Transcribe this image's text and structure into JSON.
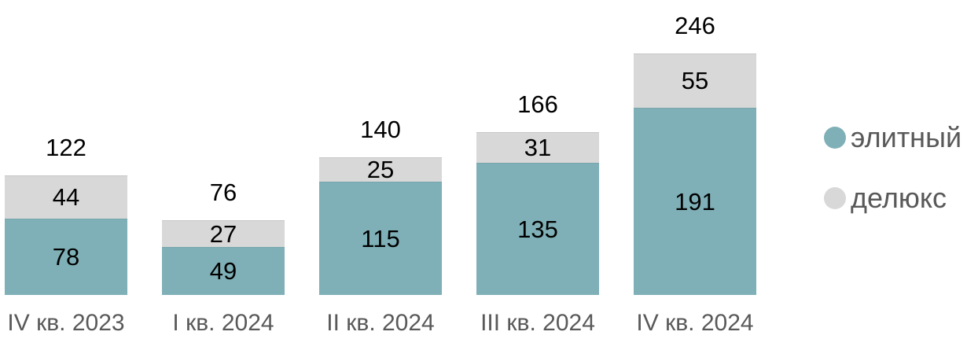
{
  "chart_data": {
    "type": "bar",
    "stacked": true,
    "title": "",
    "categories": [
      "IV кв. 2023",
      "I кв. 2024",
      "II кв. 2024",
      "III кв. 2024",
      "IV кв. 2024"
    ],
    "series": [
      {
        "name": "элитный",
        "color": "#7FB0B7",
        "values": [
          78,
          49,
          115,
          135,
          191
        ]
      },
      {
        "name": "делюкс",
        "color": "#D8D8D8",
        "values": [
          44,
          27,
          25,
          31,
          55
        ]
      }
    ],
    "totals": [
      122,
      76,
      140,
      166,
      246
    ],
    "xlabel": "",
    "ylabel": "",
    "ylim": [
      0,
      246
    ],
    "grid": false,
    "axes_hidden": true,
    "legend_position": "right",
    "value_label_color": "#000000",
    "axis_label_color": "#595959",
    "background_color": "#FFFFFF"
  },
  "legend": {
    "items": [
      {
        "label": "элитный",
        "color": "#7FB0B7",
        "swatch": "circle"
      },
      {
        "label": "делюкс",
        "color": "#D8D8D8",
        "swatch": "circle"
      }
    ]
  }
}
